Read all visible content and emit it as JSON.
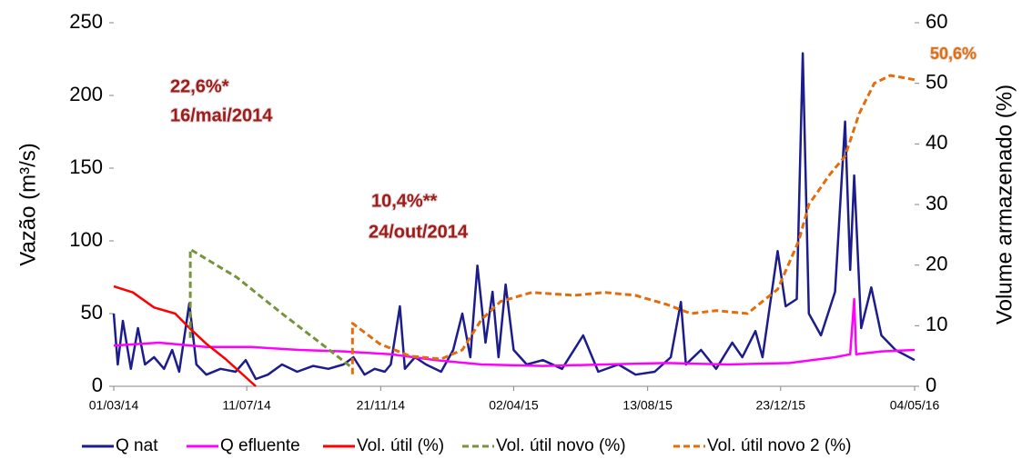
{
  "chart_data": {
    "type": "line",
    "xlim": [
      "2014-03-01",
      "2016-05-04"
    ],
    "xticks": [
      {
        "value": "2014-03-01",
        "label": "01/03/14"
      },
      {
        "value": "2014-07-11",
        "label": "11/07/14"
      },
      {
        "value": "2014-11-21",
        "label": "21/11/14"
      },
      {
        "value": "2015-04-02",
        "label": "02/04/15"
      },
      {
        "value": "2015-08-13",
        "label": "13/08/15"
      },
      {
        "value": "2015-12-23",
        "label": "23/12/15"
      },
      {
        "value": "2016-05-04",
        "label": "04/05/16"
      }
    ],
    "ylabel": "Vazão (m³/s)",
    "ylim": [
      0,
      250
    ],
    "yticks": [
      0,
      50,
      100,
      150,
      200,
      250
    ],
    "y2label": "Volume armazenado (%)",
    "y2lim": [
      0,
      60
    ],
    "y2ticks": [
      0,
      10,
      20,
      30,
      40,
      50,
      60
    ],
    "annotations": [
      "22,6%*",
      "16/mai/2014",
      "10,4%**",
      "24/out/2014",
      "50,6%"
    ],
    "series": [
      {
        "name": "Q nat",
        "color": "#1c1c8c",
        "dashed": false,
        "x": [
          "2014-03-01",
          "2014-03-05",
          "2014-03-10",
          "2014-03-18",
          "2014-03-25",
          "2014-04-01",
          "2014-04-10",
          "2014-04-20",
          "2014-04-28",
          "2014-05-05",
          "2014-05-15",
          "2014-05-22",
          "2014-06-01",
          "2014-06-15",
          "2014-06-30",
          "2014-07-10",
          "2014-07-20",
          "2014-08-01",
          "2014-08-15",
          "2014-08-30",
          "2014-09-15",
          "2014-09-30",
          "2014-10-15",
          "2014-10-25",
          "2014-11-05",
          "2014-11-15",
          "2014-11-25",
          "2014-12-01",
          "2014-12-10",
          "2014-12-15",
          "2014-12-25",
          "2015-01-05",
          "2015-01-20",
          "2015-02-01",
          "2015-02-10",
          "2015-02-18",
          "2015-02-25",
          "2015-03-05",
          "2015-03-12",
          "2015-03-18",
          "2015-03-25",
          "2015-04-02",
          "2015-04-15",
          "2015-05-01",
          "2015-05-20",
          "2015-06-10",
          "2015-06-25",
          "2015-07-15",
          "2015-08-01",
          "2015-08-20",
          "2015-09-05",
          "2015-09-15",
          "2015-09-20",
          "2015-10-05",
          "2015-10-20",
          "2015-11-05",
          "2015-11-15",
          "2015-11-28",
          "2015-12-05",
          "2015-12-20",
          "2015-12-28",
          "2016-01-08",
          "2016-01-14",
          "2016-01-20",
          "2016-02-01",
          "2016-02-15",
          "2016-02-25",
          "2016-03-01",
          "2016-03-05",
          "2016-03-12",
          "2016-03-22",
          "2016-04-01",
          "2016-04-15",
          "2016-05-04"
        ],
        "values": [
          50,
          15,
          45,
          12,
          40,
          15,
          20,
          12,
          25,
          10,
          57,
          15,
          8,
          12,
          10,
          18,
          5,
          8,
          15,
          10,
          14,
          12,
          15,
          20,
          8,
          12,
          10,
          15,
          55,
          12,
          20,
          15,
          10,
          25,
          50,
          20,
          83,
          30,
          65,
          20,
          70,
          25,
          15,
          18,
          12,
          35,
          10,
          15,
          8,
          10,
          20,
          58,
          15,
          25,
          12,
          30,
          20,
          38,
          20,
          93,
          55,
          60,
          229,
          50,
          35,
          65,
          182,
          80,
          145,
          40,
          68,
          35,
          25,
          18
        ]
      },
      {
        "name": "Q efluente",
        "color": "#ff00ff",
        "dashed": false,
        "x": [
          "2014-03-01",
          "2014-04-15",
          "2014-06-01",
          "2014-07-15",
          "2014-09-01",
          "2014-10-15",
          "2014-12-01",
          "2015-01-15",
          "2015-03-01",
          "2015-05-01",
          "2015-07-01",
          "2015-09-01",
          "2015-11-01",
          "2016-01-01",
          "2016-02-15",
          "2016-03-01",
          "2016-03-05",
          "2016-03-07",
          "2016-04-01",
          "2016-05-04"
        ],
        "values": [
          28,
          30,
          27,
          27,
          25,
          24,
          22,
          18,
          15,
          14,
          15,
          16,
          15,
          16,
          20,
          22,
          60,
          22,
          24,
          25
        ]
      },
      {
        "name": "Vol. útil (%)",
        "color": "#ff0000",
        "dashed": false,
        "axis": "y2",
        "x": [
          "2014-03-01",
          "2014-03-20",
          "2014-04-10",
          "2014-05-01",
          "2014-05-16",
          "2014-06-01",
          "2014-06-20",
          "2014-07-10",
          "2014-07-20"
        ],
        "values": [
          16.5,
          15.5,
          13,
          12,
          9.5,
          7,
          4.5,
          1.5,
          0
        ]
      },
      {
        "name": "Vol. útil novo (%)",
        "color": "#77933c",
        "dashed": true,
        "axis": "y2",
        "x": [
          "2014-05-16",
          "2014-05-16",
          "2014-07-01",
          "2014-08-15",
          "2014-10-01",
          "2014-10-24"
        ],
        "values": [
          8,
          22.6,
          18,
          12,
          6,
          3
        ]
      },
      {
        "name": "Vol. útil novo 2 (%)",
        "color": "#e46c0a",
        "dashed": true,
        "axis": "y2",
        "x": [
          "2014-10-24",
          "2014-10-24",
          "2014-11-20",
          "2014-12-20",
          "2015-01-20",
          "2015-02-10",
          "2015-03-01",
          "2015-03-20",
          "2015-04-20",
          "2015-06-01",
          "2015-07-01",
          "2015-08-01",
          "2015-09-01",
          "2015-09-25",
          "2015-10-20",
          "2015-11-20",
          "2015-12-20",
          "2016-01-10",
          "2016-01-20",
          "2016-02-10",
          "2016-02-25",
          "2016-03-10",
          "2016-03-25",
          "2016-04-10",
          "2016-05-04"
        ],
        "values": [
          2,
          10.4,
          7,
          5,
          4.5,
          6,
          11,
          14,
          15.5,
          15,
          15.5,
          15,
          13.5,
          12,
          12.5,
          12,
          16,
          24,
          30,
          35,
          38,
          45,
          50,
          51.3,
          50.6
        ]
      }
    ]
  }
}
